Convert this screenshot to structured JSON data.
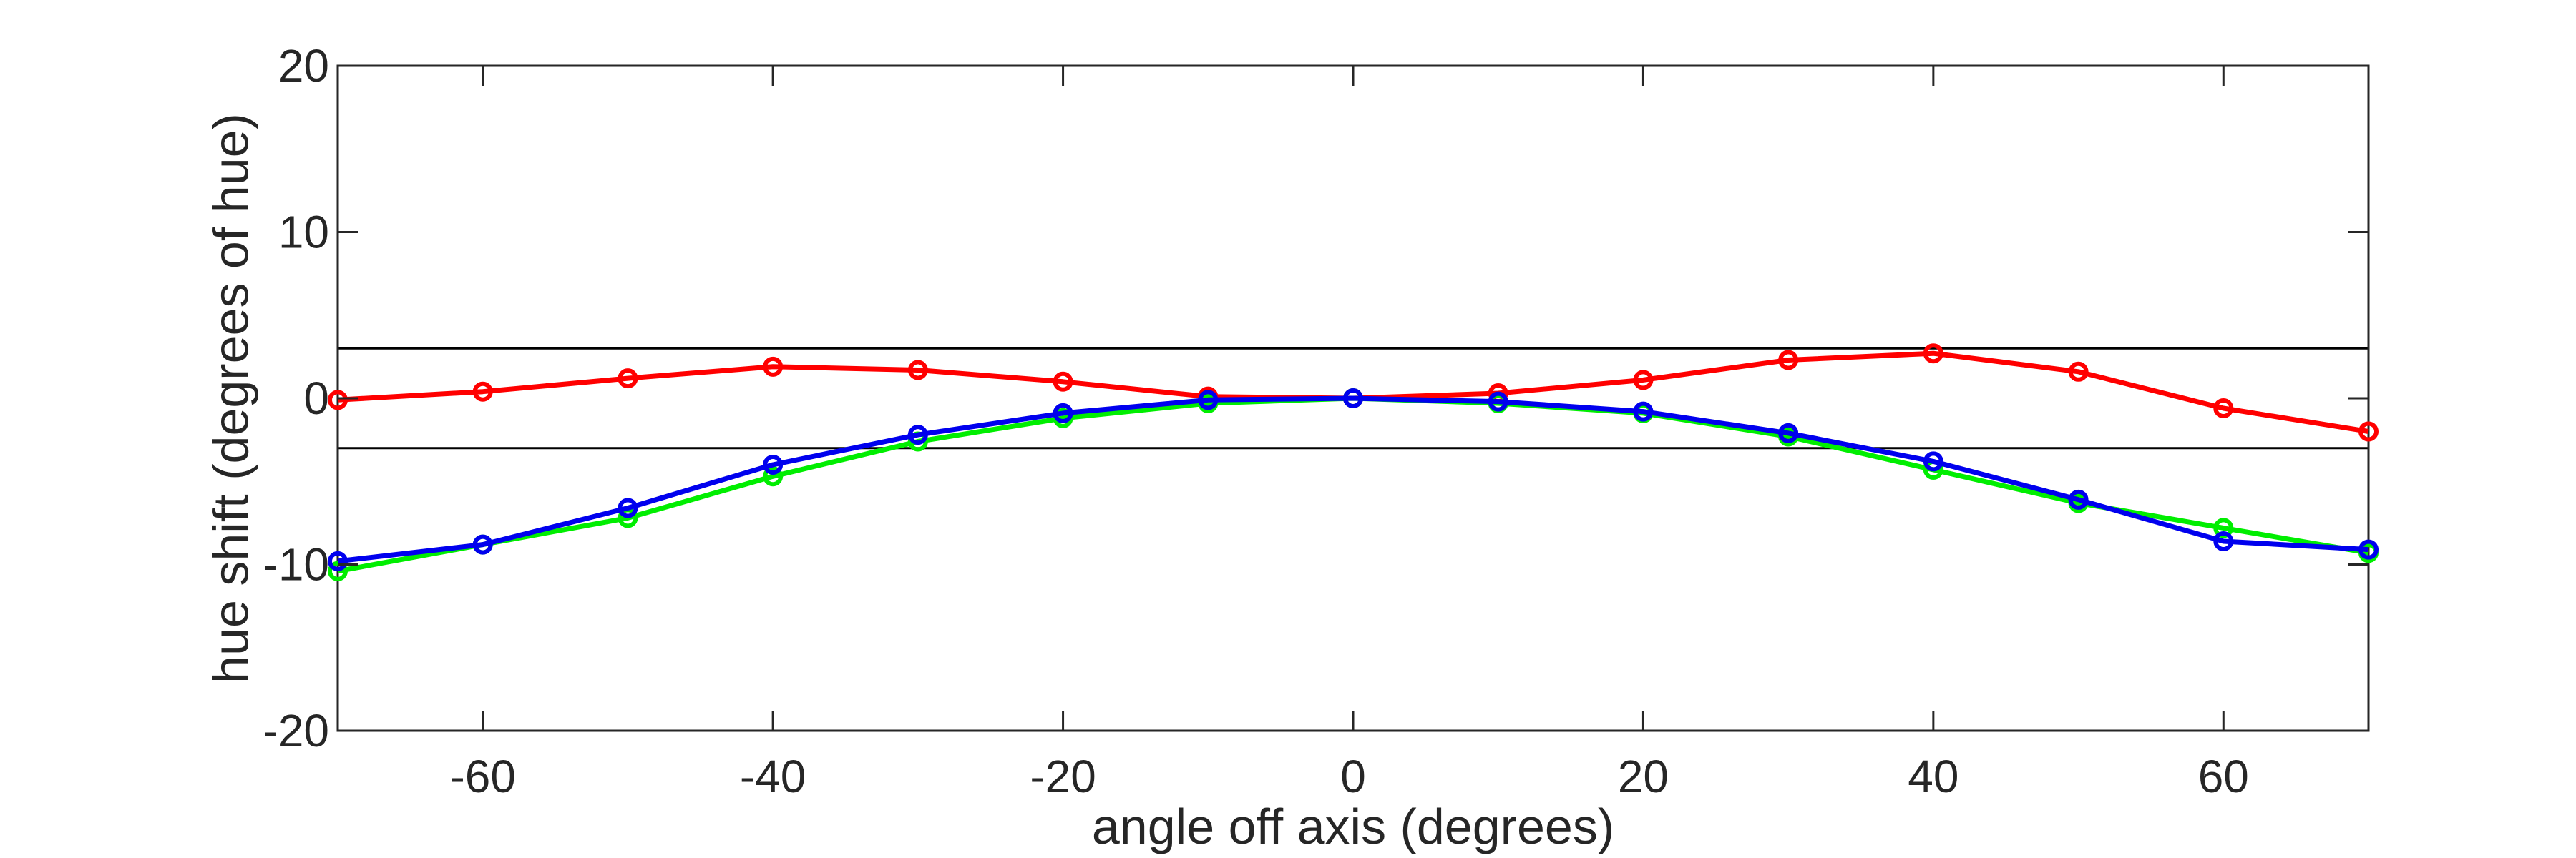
{
  "chart_data": {
    "type": "line",
    "xlabel": "angle off axis (degrees)",
    "ylabel": "hue shift (degrees of hue)",
    "xlim": [
      -70,
      70
    ],
    "ylim": [
      -20,
      20
    ],
    "xticks": [
      -60,
      -40,
      -20,
      0,
      20,
      40,
      60
    ],
    "xtick_labels": [
      "-60",
      "-40",
      "-20",
      "0",
      "20",
      "40",
      "60"
    ],
    "yticks": [
      -20,
      -10,
      0,
      10,
      20
    ],
    "ytick_labels": [
      "-20",
      "-10",
      "0",
      "10",
      "20"
    ],
    "grid": false,
    "reference_lines": [
      3,
      -3
    ],
    "x": [
      -70,
      -60,
      -50,
      -40,
      -30,
      -20,
      -10,
      0,
      10,
      20,
      30,
      40,
      50,
      60,
      70
    ],
    "series": [
      {
        "color": "#ff0000",
        "values": [
          -0.1,
          0.4,
          1.2,
          1.9,
          1.7,
          1.0,
          0.1,
          0,
          0.3,
          1.1,
          2.3,
          2.7,
          1.6,
          -0.6,
          -2.0
        ]
      },
      {
        "color": "#00ee00",
        "values": [
          -10.4,
          -8.8,
          -7.2,
          -4.7,
          -2.6,
          -1.2,
          -0.3,
          0,
          -0.3,
          -0.9,
          -2.3,
          -4.3,
          -6.3,
          -7.8,
          -9.3
        ]
      },
      {
        "color": "#0000ee",
        "values": [
          -9.8,
          -8.8,
          -6.6,
          -4.0,
          -2.2,
          -0.9,
          -0.1,
          0,
          -0.2,
          -0.8,
          -2.1,
          -3.8,
          -6.1,
          -8.6,
          -9.1
        ]
      }
    ]
  }
}
